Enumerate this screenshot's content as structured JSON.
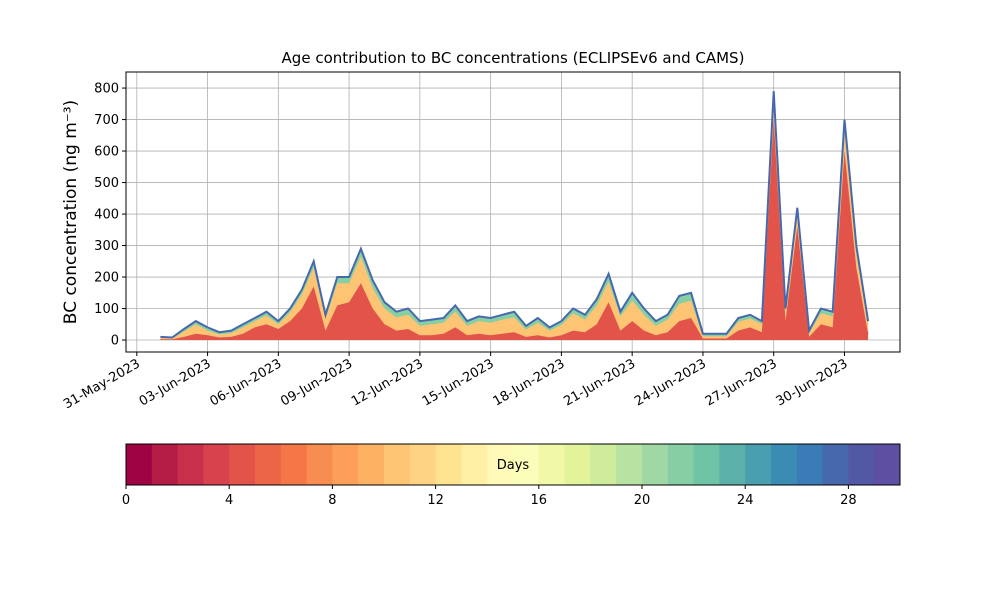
{
  "chart_data": {
    "type": "stacked_area",
    "title": "Age contribution to BC concentrations (ECLIPSEv6 and CAMS)",
    "ylabel": "BC concentration (ng m⁻³)",
    "x": [
      "2023-06-01 00:00",
      "2023-06-01 12:00",
      "2023-06-02 00:00",
      "2023-06-02 12:00",
      "2023-06-03 00:00",
      "2023-06-03 12:00",
      "2023-06-04 00:00",
      "2023-06-04 12:00",
      "2023-06-05 00:00",
      "2023-06-05 12:00",
      "2023-06-06 00:00",
      "2023-06-06 12:00",
      "2023-06-07 00:00",
      "2023-06-07 12:00",
      "2023-06-08 00:00",
      "2023-06-08 12:00",
      "2023-06-09 00:00",
      "2023-06-09 12:00",
      "2023-06-10 00:00",
      "2023-06-10 12:00",
      "2023-06-11 00:00",
      "2023-06-11 12:00",
      "2023-06-12 00:00",
      "2023-06-12 12:00",
      "2023-06-13 00:00",
      "2023-06-13 12:00",
      "2023-06-14 00:00",
      "2023-06-14 12:00",
      "2023-06-15 00:00",
      "2023-06-15 12:00",
      "2023-06-16 00:00",
      "2023-06-16 12:00",
      "2023-06-17 00:00",
      "2023-06-17 12:00",
      "2023-06-18 00:00",
      "2023-06-18 12:00",
      "2023-06-19 00:00",
      "2023-06-19 12:00",
      "2023-06-20 00:00",
      "2023-06-20 12:00",
      "2023-06-21 00:00",
      "2023-06-21 12:00",
      "2023-06-22 00:00",
      "2023-06-22 12:00",
      "2023-06-23 00:00",
      "2023-06-23 12:00",
      "2023-06-24 00:00",
      "2023-06-24 12:00",
      "2023-06-25 00:00",
      "2023-06-25 12:00",
      "2023-06-26 00:00",
      "2023-06-26 12:00",
      "2023-06-27 00:00",
      "2023-06-27 12:00",
      "2023-06-28 00:00",
      "2023-06-28 12:00",
      "2023-06-29 00:00",
      "2023-06-29 12:00",
      "2023-06-30 00:00",
      "2023-06-30 12:00",
      "2023-07-01 00:00"
    ],
    "series": [
      {
        "color": "#e2544a",
        "values": [
          3,
          2,
          10,
          20,
          15,
          8,
          10,
          20,
          40,
          50,
          35,
          60,
          100,
          170,
          30,
          110,
          120,
          180,
          100,
          50,
          30,
          35,
          15,
          15,
          20,
          40,
          15,
          20,
          15,
          20,
          25,
          10,
          15,
          8,
          15,
          30,
          25,
          50,
          120,
          30,
          60,
          30,
          15,
          25,
          60,
          70,
          5,
          5,
          5,
          30,
          40,
          25,
          700,
          60,
          360,
          10,
          50,
          40,
          600,
          230,
          20
        ]
      },
      {
        "color": "#fdc474",
        "values": [
          4,
          3,
          17,
          30,
          15,
          10,
          12,
          20,
          20,
          28,
          15,
          28,
          45,
          60,
          38,
          70,
          60,
          85,
          65,
          50,
          42,
          45,
          30,
          35,
          35,
          50,
          30,
          40,
          40,
          45,
          47,
          23,
          40,
          22,
          33,
          55,
          40,
          60,
          65,
          45,
          65,
          50,
          30,
          40,
          55,
          55,
          7,
          7,
          7,
          28,
          28,
          25,
          60,
          25,
          40,
          12,
          35,
          35,
          70,
          45,
          28
        ]
      },
      {
        "color": "#86cea4",
        "values": [
          3,
          3,
          8,
          10,
          10,
          7,
          8,
          10,
          10,
          12,
          10,
          12,
          15,
          20,
          12,
          20,
          20,
          25,
          25,
          20,
          18,
          20,
          15,
          15,
          15,
          20,
          15,
          15,
          15,
          15,
          18,
          12,
          15,
          10,
          12,
          15,
          15,
          20,
          25,
          15,
          25,
          20,
          15,
          15,
          25,
          25,
          8,
          8,
          8,
          12,
          12,
          10,
          30,
          15,
          20,
          8,
          15,
          15,
          30,
          25,
          12
        ]
      }
    ],
    "outline_color": "#4669ad",
    "xlim": [
      "2023-05-30 13:00",
      "2023-07-02 08:30"
    ],
    "xticks": [
      {
        "value": "2023-05-31",
        "label": "31-May-2023"
      },
      {
        "value": "2023-06-03",
        "label": "03-Jun-2023"
      },
      {
        "value": "2023-06-06",
        "label": "06-Jun-2023"
      },
      {
        "value": "2023-06-09",
        "label": "09-Jun-2023"
      },
      {
        "value": "2023-06-12",
        "label": "12-Jun-2023"
      },
      {
        "value": "2023-06-15",
        "label": "15-Jun-2023"
      },
      {
        "value": "2023-06-18",
        "label": "18-Jun-2023"
      },
      {
        "value": "2023-06-21",
        "label": "21-Jun-2023"
      },
      {
        "value": "2023-06-24",
        "label": "24-Jun-2023"
      },
      {
        "value": "2023-06-27",
        "label": "27-Jun-2023"
      },
      {
        "value": "2023-06-30",
        "label": "30-Jun-2023"
      }
    ],
    "ylim": [
      -38,
      851
    ],
    "yticks": [
      0,
      100,
      200,
      300,
      400,
      500,
      600,
      700,
      800
    ],
    "grid": true,
    "colorbar": {
      "label": "Days",
      "lim": [
        0,
        30
      ],
      "ticks": [
        0,
        4,
        8,
        12,
        16,
        20,
        24,
        28
      ],
      "colors": [
        "#a00343",
        "#b51c45",
        "#c72f4a",
        "#d7424d",
        "#e2544a",
        "#ec6547",
        "#f57748",
        "#f88d52",
        "#fb9f5a",
        "#fdb163",
        "#fdc474",
        "#fed383",
        "#fee391",
        "#fff0a6",
        "#fffab8",
        "#fbfdba",
        "#f1f9a9",
        "#e3f399",
        "#cfec9d",
        "#b8e2a1",
        "#9fd8a4",
        "#86cea4",
        "#6fc4a5",
        "#5bb1a9",
        "#4a9fae",
        "#3a8cb5",
        "#3a7bb8",
        "#4669ad",
        "#5358a5",
        "#5e4fa2"
      ]
    }
  }
}
